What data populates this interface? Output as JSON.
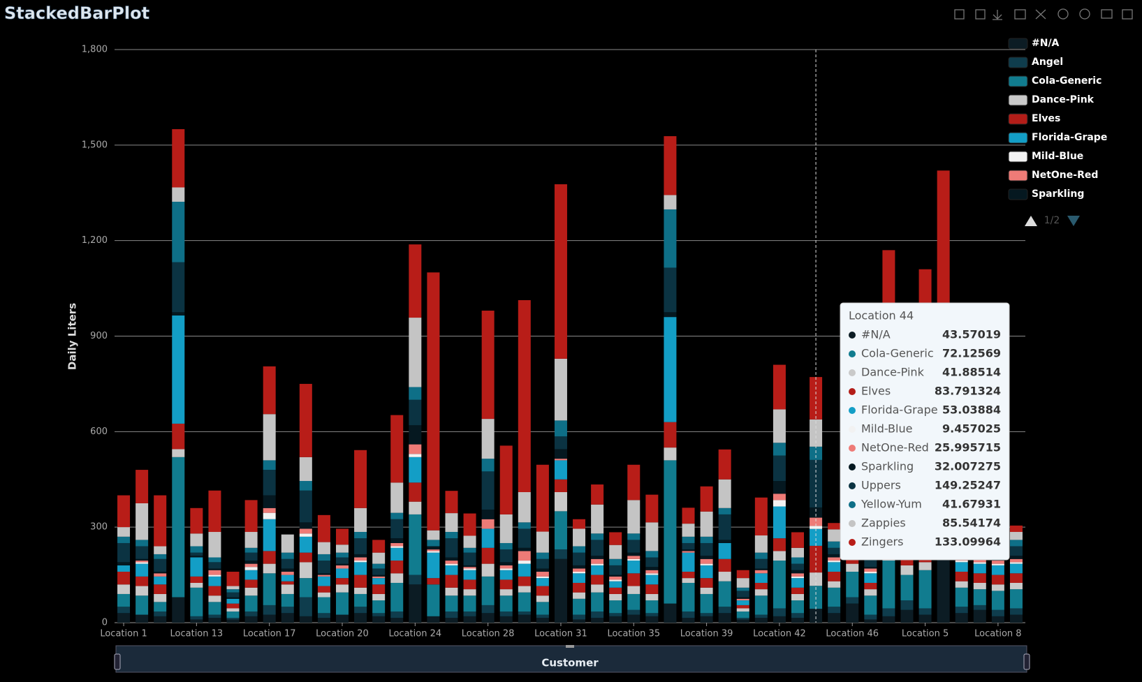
{
  "chart_data": {
    "type": "stacked_bar",
    "title": "StackedBarPlot",
    "y_label": "Daily Liters",
    "x_label": "Customer",
    "categories": [
      "Location 1",
      null,
      null,
      null,
      "Location 13",
      null,
      null,
      null,
      "Location 17",
      null,
      null,
      null,
      "Location 20",
      null,
      null,
      null,
      "Location 24",
      null,
      null,
      null,
      "Location 28",
      null,
      null,
      null,
      "Location 31",
      null,
      null,
      null,
      "Location 35",
      null,
      null,
      null,
      "Location 39",
      null,
      null,
      null,
      "Location 42",
      null,
      null,
      null,
      "Location 46",
      null,
      null,
      null,
      "Location 5",
      null,
      null,
      null,
      "Location 8",
      null
    ],
    "ylim": [
      0,
      1800
    ],
    "yticks": [
      0,
      300,
      600,
      900,
      {
        "value": 1200,
        "label": "1,200"
      },
      {
        "value": 1500,
        "label": "1,500"
      },
      {
        "value": 1800,
        "label": "1,800"
      }
    ],
    "grid": true,
    "legend_position": "top-right",
    "legend_page": "1/2",
    "tooltip": {
      "title": "Location 44"
    },
    "series": [
      {
        "name": "#N/A",
        "color": "#0c1c24",
        "values": [
          30,
          25,
          20,
          80,
          10,
          15,
          10,
          20,
          25,
          30,
          20,
          15,
          25,
          30,
          20,
          15,
          120,
          20,
          15,
          20,
          30,
          20,
          25,
          15,
          200,
          10,
          15,
          20,
          25,
          20,
          60,
          15,
          20,
          30,
          10,
          15,
          20,
          15,
          43.57019,
          30,
          60,
          10,
          20,
          40,
          25,
          200,
          30,
          40,
          20,
          25
        ]
      },
      {
        "name": "Angel",
        "color": "#0f3d4d",
        "values": [
          20,
          0,
          15,
          0,
          10,
          10,
          5,
          15,
          30,
          20,
          60,
          15,
          0,
          20,
          10,
          20,
          30,
          0,
          20,
          15,
          25,
          15,
          10,
          10,
          30,
          15,
          20,
          10,
          15,
          10,
          0,
          20,
          10,
          20,
          5,
          10,
          25,
          15,
          null,
          20,
          20,
          15,
          25,
          30,
          20,
          0,
          20,
          15,
          20,
          20
        ]
      },
      {
        "name": "Cola-Generic",
        "color": "#117c8f",
        "values": [
          40,
          60,
          30,
          440,
          90,
          40,
          20,
          50,
          100,
          40,
          60,
          50,
          70,
          40,
          40,
          90,
          190,
          100,
          50,
          50,
          90,
          50,
          60,
          40,
          120,
          50,
          60,
          40,
          50,
          40,
          450,
          90,
          60,
          80,
          20,
          60,
          150,
          40,
          72.12569,
          60,
          80,
          60,
          150,
          80,
          120,
          0,
          60,
          50,
          60,
          60
        ]
      },
      {
        "name": "Dance-Pink",
        "color": "#c9c9c9",
        "values": [
          30,
          30,
          25,
          25,
          15,
          20,
          10,
          25,
          30,
          30,
          50,
          15,
          25,
          20,
          20,
          30,
          40,
          0,
          25,
          20,
          40,
          20,
          20,
          20,
          60,
          20,
          25,
          20,
          25,
          20,
          40,
          15,
          20,
          30,
          10,
          20,
          30,
          20,
          41.88514,
          20,
          25,
          20,
          30,
          30,
          25,
          0,
          20,
          20,
          20,
          20
        ]
      },
      {
        "name": "Elves",
        "color": "#b31d18",
        "values": [
          40,
          30,
          30,
          80,
          20,
          30,
          15,
          25,
          40,
          10,
          30,
          20,
          20,
          40,
          30,
          40,
          60,
          20,
          40,
          30,
          50,
          30,
          30,
          30,
          40,
          30,
          30,
          20,
          40,
          30,
          80,
          20,
          30,
          40,
          10,
          20,
          40,
          20,
          83.791324,
          30,
          30,
          20,
          40,
          30,
          30,
          0,
          30,
          30,
          30,
          30
        ]
      },
      {
        "name": "Florida-Grape",
        "color": "#139ec6",
        "values": [
          20,
          40,
          25,
          340,
          60,
          30,
          15,
          30,
          100,
          20,
          50,
          30,
          30,
          40,
          20,
          40,
          80,
          80,
          30,
          30,
          60,
          30,
          40,
          25,
          60,
          30,
          30,
          20,
          40,
          30,
          330,
          60,
          40,
          50,
          15,
          30,
          100,
          30,
          53.03884,
          30,
          40,
          30,
          60,
          40,
          50,
          0,
          30,
          30,
          30,
          30
        ]
      },
      {
        "name": "Mild-Blue",
        "color": "#f2f2f2",
        "values": [
          0,
          5,
          0,
          0,
          0,
          5,
          0,
          10,
          20,
          0,
          10,
          0,
          0,
          5,
          0,
          5,
          10,
          5,
          5,
          5,
          0,
          5,
          10,
          5,
          0,
          5,
          5,
          5,
          5,
          5,
          0,
          0,
          5,
          0,
          0,
          0,
          20,
          5,
          9.457025,
          5,
          5,
          5,
          0,
          5,
          5,
          0,
          5,
          5,
          5,
          5
        ]
      },
      {
        "name": "NetOne-Red",
        "color": "#ee7b77",
        "values": [
          0,
          5,
          10,
          0,
          0,
          15,
          0,
          10,
          15,
          10,
          15,
          5,
          10,
          10,
          5,
          10,
          30,
          5,
          10,
          5,
          30,
          10,
          30,
          15,
          5,
          10,
          15,
          10,
          10,
          10,
          0,
          5,
          15,
          0,
          5,
          10,
          20,
          10,
          25.995715,
          10,
          10,
          10,
          15,
          10,
          10,
          0,
          10,
          10,
          10,
          10
        ]
      },
      {
        "name": "Sparkling",
        "color": "#051820",
        "values": [
          10,
          5,
          5,
          10,
          5,
          5,
          5,
          10,
          40,
          10,
          20,
          5,
          5,
          10,
          5,
          15,
          60,
          10,
          10,
          5,
          30,
          10,
          10,
          10,
          30,
          10,
          10,
          5,
          10,
          10,
          15,
          5,
          10,
          10,
          5,
          5,
          40,
          10,
          32.007275,
          10,
          10,
          5,
          20,
          10,
          10,
          0,
          10,
          10,
          10,
          10
        ]
      },
      {
        "name": "Uppers",
        "color": "#0b3342",
        "values": [
          60,
          40,
          40,
          157,
          10,
          20,
          15,
          25,
          80,
          30,
          100,
          40,
          20,
          50,
          20,
          60,
          80,
          0,
          60,
          40,
          120,
          40,
          60,
          30,
          40,
          40,
          50,
          30,
          40,
          30,
          140,
          20,
          40,
          80,
          20,
          30,
          80,
          20,
          149.25247,
          20,
          60,
          30,
          120,
          80,
          80,
          0,
          30,
          40,
          30,
          30
        ]
      },
      {
        "name": "Yellow-Yum",
        "color": "#0e6f87",
        "values": [
          20,
          20,
          15,
          190,
          20,
          15,
          10,
          15,
          30,
          20,
          30,
          20,
          15,
          20,
          15,
          20,
          40,
          20,
          20,
          15,
          40,
          20,
          20,
          20,
          50,
          20,
          20,
          20,
          20,
          20,
          183,
          20,
          20,
          20,
          10,
          20,
          40,
          20,
          41.67931,
          20,
          20,
          20,
          30,
          30,
          30,
          0,
          20,
          20,
          20,
          20
        ]
      },
      {
        "name": "Zappies",
        "color": "#c4c4c4",
        "values": [
          30,
          115,
          25,
          45,
          40,
          80,
          10,
          50,
          145,
          57,
          75,
          38,
          25,
          75,
          35,
          95,
          218,
          30,
          59,
          38,
          125,
          90,
          95,
          66,
          194,
          55,
          91,
          44,
          105,
          90,
          45,
          41,
          79,
          90,
          30,
          54,
          105,
          30,
          85.54174,
          38,
          0,
          35,
          150,
          130,
          120,
          0,
          35,
          30,
          25,
          25
        ]
      },
      {
        "name": "Zingers",
        "color": "#b81d18",
        "values": [
          100,
          105,
          160,
          183,
          80,
          130,
          45,
          100,
          150,
          0,
          230,
          85,
          50,
          182,
          40,
          212,
          230,
          810,
          70,
          70,
          340,
          216,
          603,
          210,
          548,
          30,
          63,
          40,
          111,
          87,
          185,
          50,
          79,
          94,
          25,
          119,
          140,
          49,
          133.09964,
          20,
          30,
          20,
          510,
          185,
          585,
          1220,
          20,
          20,
          20,
          20
        ]
      }
    ]
  }
}
